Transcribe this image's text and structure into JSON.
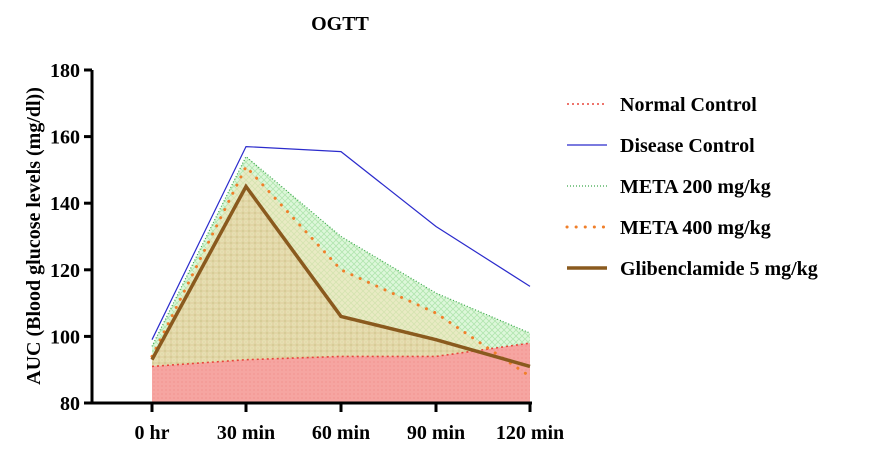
{
  "chart_data": {
    "type": "area",
    "title": "OGTT",
    "xlabel": "",
    "ylabel": "AUC (Blood glucose levels (mg/dl))",
    "categories": [
      "0 hr",
      "30 min",
      "60 min",
      "90 min",
      "120 min"
    ],
    "ylim": [
      80,
      180
    ],
    "yticks": [
      "80",
      "100",
      "120",
      "140",
      "160",
      "180"
    ],
    "grid": false,
    "legend_position": "right",
    "series": [
      {
        "name": "Normal Control",
        "values": [
          91,
          93,
          94,
          94,
          98
        ],
        "color": "#e8463c",
        "fill": "#f4a09c",
        "style": "dotted"
      },
      {
        "name": "Disease Control",
        "values": [
          99,
          157,
          155.5,
          133,
          115
        ],
        "color": "#2b2bcc",
        "fill": "none",
        "style": "solid"
      },
      {
        "name": "META 200 mg/kg",
        "values": [
          97,
          154,
          130,
          113,
          101
        ],
        "color": "#3aa84a",
        "fill": "#d3f4cf",
        "style": "dotted"
      },
      {
        "name": "META 400 mg/kg",
        "values": [
          94,
          151,
          120,
          107,
          88
        ],
        "color": "#f07f2a",
        "fill": "#f6e2b6",
        "style": "dots"
      },
      {
        "name": "Glibenclamide 5 mg/kg",
        "values": [
          93,
          145,
          106,
          99,
          91
        ],
        "color": "#8a5a1e",
        "fill": "#e3cc98",
        "style": "thick"
      }
    ]
  }
}
